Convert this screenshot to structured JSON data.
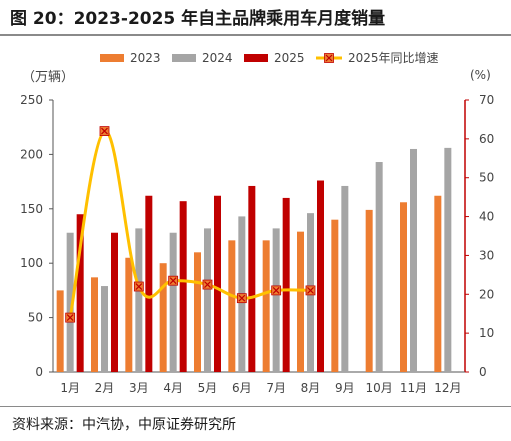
{
  "title": "图 20：2023-2025 年自主品牌乘用车月度销量",
  "source": "资料来源：中汽协，中原证券研究所",
  "chart_data": {
    "type": "bar",
    "categories": [
      "1月",
      "2月",
      "3月",
      "4月",
      "5月",
      "6月",
      "7月",
      "8月",
      "9月",
      "10月",
      "11月",
      "12月"
    ],
    "left_axis": {
      "unit": "（万辆）",
      "ylim": [
        0,
        250
      ],
      "ticks": [
        "0",
        "50",
        "100",
        "150",
        "200",
        "250"
      ]
    },
    "right_axis": {
      "unit": "(%)",
      "ylim": [
        0,
        70
      ],
      "ticks": [
        "0",
        "10",
        "20",
        "30",
        "40",
        "50",
        "60",
        "70"
      ]
    },
    "series": [
      {
        "name": "2023",
        "type": "bar",
        "axis": "left",
        "color": "#ED7D31",
        "values": [
          75,
          87,
          105,
          100,
          110,
          121,
          121,
          129,
          140,
          149,
          156,
          162
        ]
      },
      {
        "name": "2024",
        "type": "bar",
        "axis": "left",
        "color": "#A5A5A5",
        "values": [
          128,
          79,
          132,
          128,
          132,
          143,
          132,
          146,
          171,
          193,
          205,
          206
        ]
      },
      {
        "name": "2025",
        "type": "bar",
        "axis": "left",
        "color": "#C00000",
        "values": [
          145,
          128,
          162,
          157,
          162,
          171,
          160,
          176,
          null,
          null,
          null,
          null
        ]
      },
      {
        "name": "2025年同比增速",
        "type": "line",
        "axis": "right",
        "color": "#FFC000",
        "marker_color": "#ED7D31",
        "values": [
          14,
          62,
          22,
          23.5,
          22.5,
          19,
          21,
          21,
          null,
          null,
          null,
          null
        ]
      }
    ],
    "legend_position": "top",
    "grid": false
  }
}
